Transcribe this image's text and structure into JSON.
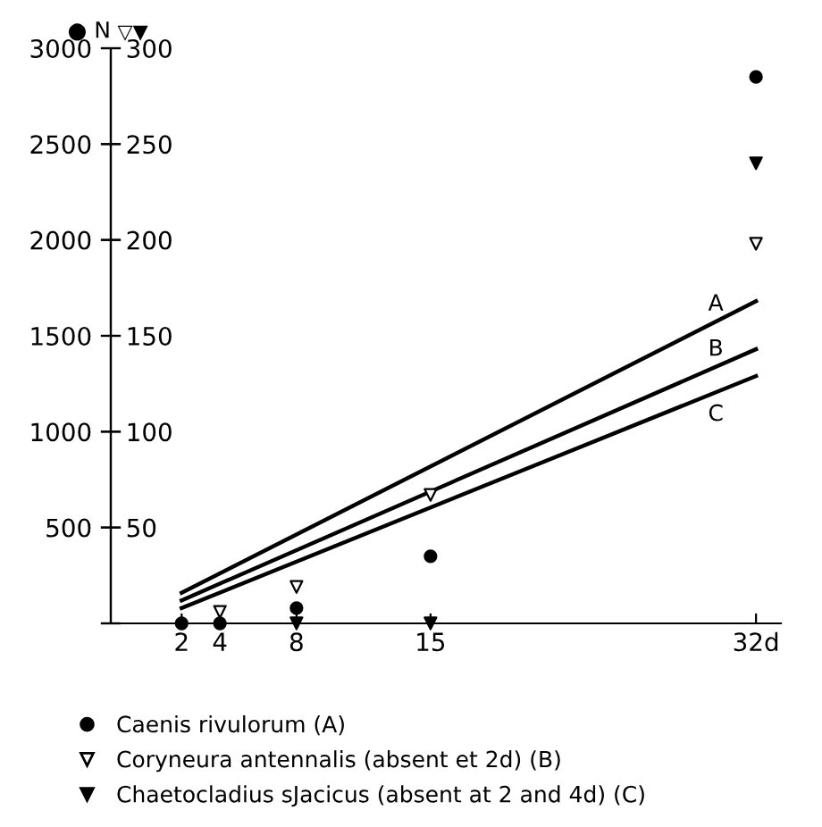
{
  "chart_data": {
    "type": "scatter",
    "ylabel": "● N",
    "y2label": "▽▼",
    "xlim": [
      -1.7,
      33.3
    ],
    "xticks": [
      2,
      4,
      8,
      15,
      {
        "value": 32,
        "label": "32d"
      }
    ],
    "ylim": [
      0,
      3000
    ],
    "yticks": [
      {
        "value": 0,
        "label": null
      },
      500,
      1000,
      1500,
      2000,
      2500,
      3000
    ],
    "y2lim": [
      0,
      300
    ],
    "y2ticks": [
      {
        "value": 0,
        "label": null
      },
      50,
      100,
      150,
      200,
      250,
      300
    ],
    "grid": false,
    "legend": "bottom",
    "series": [
      {
        "name": "Caenis rivulorum (A)",
        "color": "#000000",
        "marker": "circle",
        "x": [
          2,
          4,
          8,
          15,
          32
        ],
        "values": [
          0,
          0,
          80,
          350,
          2850
        ]
      },
      {
        "name": "Coryneura antennalis (absent et 2d) (B)",
        "color": "#ffffff",
        "marker": "triangle",
        "axis": "y2",
        "x": [
          4,
          8,
          15,
          32
        ],
        "values": [
          6,
          19,
          67,
          198
        ]
      },
      {
        "name": "Chaetocladius sJacicus (absent at 2 and 4d) (C)",
        "color": "#000000",
        "marker": "triangle",
        "axis": "y2",
        "x": [
          8,
          15,
          32
        ],
        "values": [
          0,
          0,
          240
        ]
      },
      {
        "type": "line",
        "color": "#000000",
        "x": [
          2,
          32
        ],
        "values": [
          160,
          1680
        ]
      },
      {
        "type": "line",
        "color": "#000000",
        "x": [
          2,
          32
        ],
        "values": [
          120,
          1430
        ]
      },
      {
        "type": "line",
        "color": "#000000",
        "x": [
          2,
          32
        ],
        "values": [
          80,
          1290
        ]
      }
    ],
    "annotations": [
      "A",
      "B",
      "C"
    ]
  }
}
